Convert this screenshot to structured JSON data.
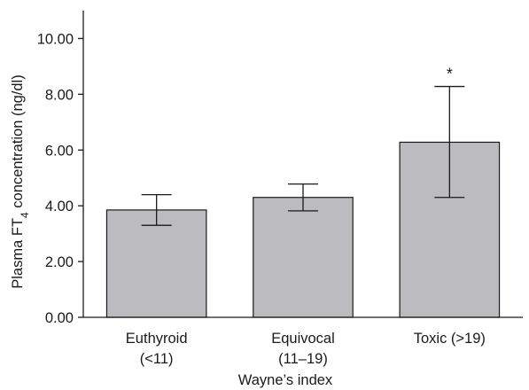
{
  "chart_data": {
    "type": "bar",
    "categories": [
      [
        "Euthyroid",
        "(<11)"
      ],
      [
        "Equivocal",
        "(11–19)"
      ],
      [
        "Toxic (>19)"
      ]
    ],
    "values": [
      3.85,
      4.3,
      6.28
    ],
    "error_upper": [
      4.4,
      4.78,
      8.28
    ],
    "error_lower": [
      3.3,
      3.82,
      4.3
    ],
    "annotations": [
      "",
      "",
      "*"
    ],
    "xlabel": "Wayne’s index",
    "ylabel": {
      "before": "Plasma FT",
      "sub": "4",
      "after": " concentration (ng/dl)"
    },
    "yticks": [
      "0.00",
      "2.00",
      "4.00",
      "6.00",
      "8.00",
      "10.00"
    ],
    "ylim": [
      0,
      11
    ],
    "grid": false,
    "bar_color": "#bcbcc0",
    "bar_edge_color": "#1a1a1a"
  }
}
